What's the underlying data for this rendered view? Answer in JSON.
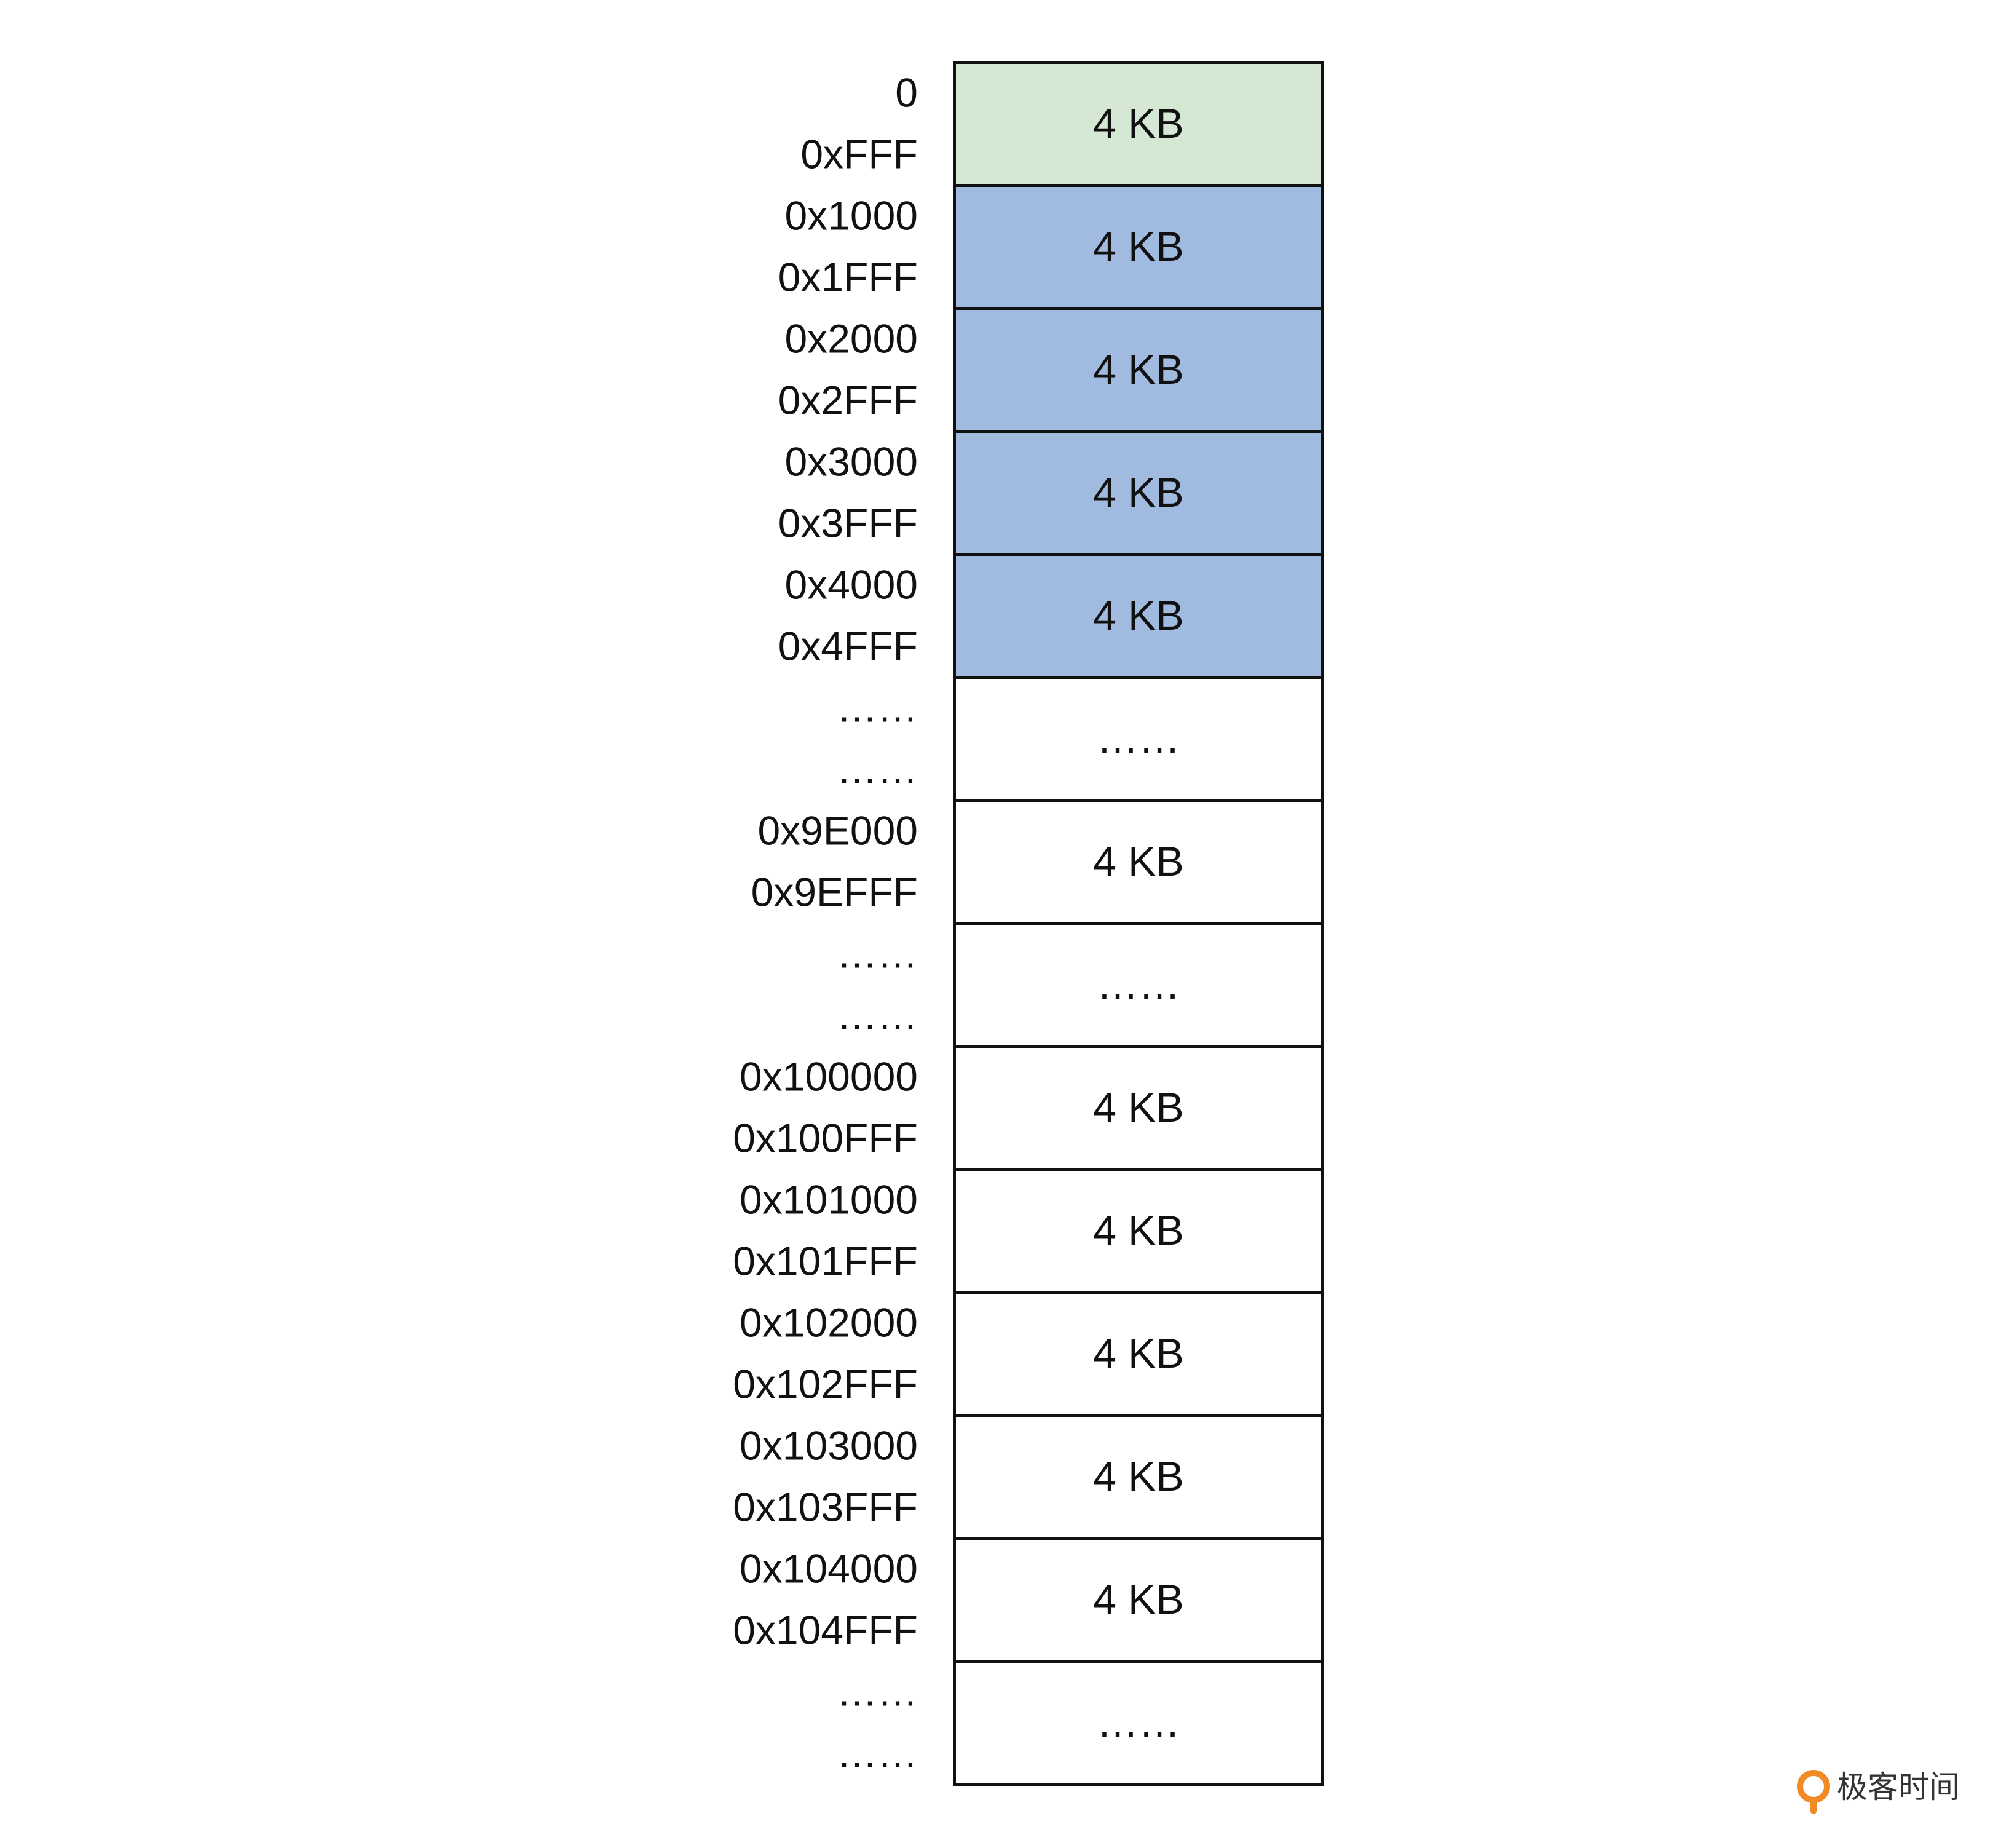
{
  "blocks": [
    {
      "start": "0",
      "end": "0xFFF",
      "label": "4 KB",
      "fill": "#d5e8d4"
    },
    {
      "start": "0x1000",
      "end": "0x1FFF",
      "label": "4 KB",
      "fill": "#a1badf"
    },
    {
      "start": "0x2000",
      "end": "0x2FFF",
      "label": "4 KB",
      "fill": "#a1badf"
    },
    {
      "start": "0x3000",
      "end": "0x3FFF",
      "label": "4 KB",
      "fill": "#a1badf"
    },
    {
      "start": "0x4000",
      "end": "0x4FFF",
      "label": "4 KB",
      "fill": "#a1badf"
    },
    {
      "start": "……",
      "end": "……",
      "label": "……",
      "fill": "#ffffff"
    },
    {
      "start": "0x9E000",
      "end": "0x9EFFF",
      "label": "4 KB",
      "fill": "#ffffff"
    },
    {
      "start": "……",
      "end": "……",
      "label": "……",
      "fill": "#ffffff"
    },
    {
      "start": "0x100000",
      "end": "0x100FFF",
      "label": "4 KB",
      "fill": "#ffffff"
    },
    {
      "start": "0x101000",
      "end": "0x101FFF",
      "label": "4 KB",
      "fill": "#ffffff"
    },
    {
      "start": "0x102000",
      "end": "0x102FFF",
      "label": "4 KB",
      "fill": "#ffffff"
    },
    {
      "start": "0x103000",
      "end": "0x103FFF",
      "label": "4 KB",
      "fill": "#ffffff"
    },
    {
      "start": "0x104000",
      "end": "0x104FFF",
      "label": "4 KB",
      "fill": "#ffffff"
    },
    {
      "start": "……",
      "end": "……",
      "label": "……",
      "fill": "#ffffff"
    }
  ],
  "brand": "极客时间"
}
